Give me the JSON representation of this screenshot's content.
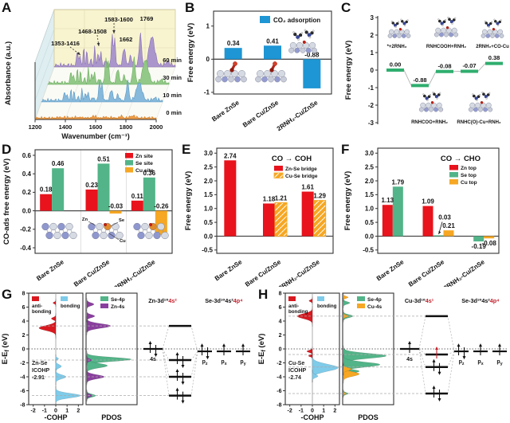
{
  "figure_panels": [
    {
      "letter": "A"
    },
    {
      "letter": "B"
    },
    {
      "letter": "C"
    },
    {
      "letter": "D"
    },
    {
      "letter": "E"
    },
    {
      "letter": "F"
    },
    {
      "letter": "G"
    },
    {
      "letter": "H"
    }
  ],
  "chart_data": [
    {
      "panel": "A",
      "type": "area",
      "xlabel": "Wavenumber (cm⁻¹)",
      "ylabel": "Absorbance (a.u.)",
      "xlim": [
        1200,
        2000
      ],
      "xticks": [
        1200,
        1400,
        1600,
        1800,
        2000
      ],
      "series": [
        {
          "name": "60 min",
          "color": "#a893cb",
          "edge": "#8a72b5",
          "amp": 1.0,
          "depth": 3
        },
        {
          "name": "30 min",
          "color": "#90c784",
          "edge": "#6faf63",
          "amp": 0.8,
          "depth": 2
        },
        {
          "name": "10 min",
          "color": "#82b7da",
          "edge": "#5f9cc6",
          "amp": 0.62,
          "depth": 1
        },
        {
          "name": "0 min",
          "color": "#f09a40",
          "edge": "#d97f22",
          "amp": 0.07,
          "depth": 0
        }
      ],
      "peaks": [
        [
          1353,
          0.5,
          7
        ],
        [
          1371,
          0.33,
          6
        ],
        [
          1395,
          0.55,
          6
        ],
        [
          1416,
          0.45,
          6
        ],
        [
          1442,
          0.22,
          6
        ],
        [
          1468,
          0.6,
          6
        ],
        [
          1490,
          0.42,
          6
        ],
        [
          1508,
          0.5,
          6
        ],
        [
          1540,
          0.15,
          10
        ],
        [
          1583,
          0.95,
          8
        ],
        [
          1600,
          0.8,
          8
        ],
        [
          1662,
          0.55,
          12
        ],
        [
          1705,
          0.28,
          12
        ],
        [
          1769,
          1.0,
          11
        ],
        [
          1845,
          0.9,
          26
        ],
        [
          1950,
          0.12,
          20
        ]
      ],
      "annotations": [
        "1353-1416",
        "1468-1508",
        "1583-1600",
        "1769",
        "1662"
      ]
    },
    {
      "panel": "B",
      "type": "bar",
      "ylabel": "Free energy (eV)",
      "ylim": [
        -1.05,
        1.45
      ],
      "yticks": [
        {
          "v": 1,
          "t": "1"
        },
        {
          "v": 0,
          "t": "0"
        },
        {
          "v": -1,
          "t": "-1"
        }
      ],
      "series": [
        {
          "name": "CO₂ adsorption",
          "color": "#1e95d4"
        }
      ],
      "categories": [
        "Bare ZnSe",
        "Bare Cu/ZnSe",
        "2RNH₂-Cu/ZnSe"
      ],
      "values": [
        [
          0.34
        ],
        [
          0.41
        ],
        [
          -0.88
        ]
      ],
      "value_labels": [
        [
          "0.34"
        ],
        [
          "0.41"
        ],
        [
          "-0.88"
        ]
      ],
      "neg_label": "above-zero",
      "insets": [
        "slab-co",
        "slab-co",
        "amine-surface"
      ]
    },
    {
      "panel": "C",
      "type": "step",
      "ylabel": "Free energy (eV)",
      "ylim": [
        -3,
        3
      ],
      "yticks": [
        {
          "v": 3,
          "t": "3"
        },
        {
          "v": 2,
          "t": "2"
        },
        {
          "v": 1,
          "t": "1"
        },
        {
          "v": 0,
          "t": "0"
        },
        {
          "v": -1,
          "t": "-1"
        },
        {
          "v": -2,
          "t": "-2"
        },
        {
          "v": -3,
          "t": "-3"
        }
      ],
      "levels": [
        0.0,
        -0.88,
        -0.08,
        -0.07,
        0.38
      ],
      "level_labels": [
        "0.00",
        "-0.88",
        "-0.08",
        "-0.07",
        "0.38"
      ],
      "state_labels_top": [
        "*+2RNH₂",
        "RNHCOOH+RNH₂",
        "2RNH₂+CO-Cu"
      ],
      "state_labels_bottom": [
        "RNHCOO+RNH₂",
        "RNHC(O)-Cu+RNH₂"
      ],
      "level_color": "#2fae6e",
      "insets_top": [
        "amine-surface",
        "amine-surface",
        "amine-surface"
      ],
      "insets_bottom": [
        "amine-surface",
        "amine-surface"
      ]
    },
    {
      "panel": "D",
      "type": "bar",
      "ylabel": "CO-ads free energy (eV)",
      "ylim": [
        -0.46,
        0.66
      ],
      "yticks": [
        {
          "v": 0.6,
          "t": "0.6"
        },
        {
          "v": 0.4,
          "t": "0.4"
        },
        {
          "v": 0.2,
          "t": "0.2"
        },
        {
          "v": 0.0,
          "t": "0.0"
        },
        {
          "v": -0.2,
          "t": "-0.2"
        },
        {
          "v": -0.4,
          "t": "-0.4"
        }
      ],
      "series": [
        {
          "name": "Zn site",
          "color": "#e8131c"
        },
        {
          "name": "Se site",
          "color": "#52b488"
        },
        {
          "name": "Cu site",
          "color": "#f6a723"
        }
      ],
      "categories": [
        "Bare ZnSe",
        "Bare Cu/ZnSe",
        "2RNH₂-Cu/ZnSe"
      ],
      "values": [
        [
          0.18,
          0.46,
          null
        ],
        [
          0.23,
          0.51,
          -0.03
        ],
        [
          0.11,
          0.36,
          -0.26
        ]
      ],
      "value_labels": [
        [
          "0.18",
          "0.46",
          null
        ],
        [
          "0.23",
          "0.51",
          "-0.03"
        ],
        [
          "0.11",
          "0.36",
          "-0.26"
        ]
      ],
      "neg_label": "above-zero",
      "insets": [
        "lattice",
        "lattice-cu",
        "lattice-cu"
      ],
      "inset_labels": [
        "Zn",
        "Se",
        "Cu"
      ]
    },
    {
      "panel": "E",
      "type": "bar",
      "title": "CO → COH",
      "ylabel": "Free energy (eV)",
      "ylim": [
        -0.62,
        3.18
      ],
      "yticks": [
        {
          "v": 3.0,
          "t": "3.0"
        },
        {
          "v": 2.5,
          "t": "2.5"
        },
        {
          "v": 2.0,
          "t": "2.0"
        },
        {
          "v": 1.5,
          "t": "1.5"
        },
        {
          "v": 1.0,
          "t": "1.0"
        },
        {
          "v": 0.5,
          "t": "0.5"
        },
        {
          "v": 0.0,
          "t": "0.0"
        },
        {
          "v": -0.5,
          "t": "-0.5"
        }
      ],
      "series": [
        {
          "name": "Zn-Se bridge",
          "color": "#e8131c"
        },
        {
          "name": "Cu-Se bridge",
          "color": "#f6a723",
          "hatch": true
        }
      ],
      "categories": [
        "Bare ZnSe",
        "Bare Cu/ZnSe",
        "2RNH₂-Cu/ZnSe"
      ],
      "values": [
        [
          2.74,
          null
        ],
        [
          1.18,
          1.21
        ],
        [
          1.61,
          1.29
        ]
      ],
      "value_labels": [
        [
          "2.74",
          null
        ],
        [
          "1.18",
          "1.21"
        ],
        [
          "1.61",
          "1.29"
        ]
      ]
    },
    {
      "panel": "F",
      "type": "bar",
      "title": "CO → CHO",
      "ylabel": "Free energy (eV)",
      "ylim": [
        -0.62,
        3.18
      ],
      "yticks": [
        {
          "v": 3.0,
          "t": "3.0"
        },
        {
          "v": 2.5,
          "t": "2.5"
        },
        {
          "v": 2.0,
          "t": "2.0"
        },
        {
          "v": 1.5,
          "t": "1.5"
        },
        {
          "v": 1.0,
          "t": "1.0"
        },
        {
          "v": 0.5,
          "t": "0.5"
        },
        {
          "v": 0.0,
          "t": "0.0"
        },
        {
          "v": -0.5,
          "t": "-0.5"
        }
      ],
      "series": [
        {
          "name": "Zn top",
          "color": "#e8131c"
        },
        {
          "name": "Se top",
          "color": "#52b488"
        },
        {
          "name": "Cu top",
          "color": "#f6a723"
        }
      ],
      "categories": [
        "Bare ZnSe",
        "Bare Cu/ZnSe",
        "2RNH₂-Cu/ZnSe"
      ],
      "values": [
        [
          1.13,
          1.79,
          null
        ],
        [
          1.09,
          0.03,
          0.21
        ],
        [
          null,
          -0.19,
          -0.08
        ]
      ],
      "value_labels": [
        [
          "1.13",
          "1.79",
          null
        ],
        [
          "1.09",
          null,
          "0.21"
        ],
        [
          null,
          "-0.19",
          "-0.08"
        ]
      ],
      "neg_label": "below-bar",
      "annotation_arrow": {
        "group": 1,
        "bar": 1,
        "label": "0.03"
      }
    },
    {
      "panel": "G",
      "type": "cohp",
      "ylabel_parts": [
        "E-E",
        "f",
        " (eV)"
      ],
      "ylim": [
        -8,
        8
      ],
      "yticks": [
        8,
        6,
        4,
        2,
        0,
        -2,
        -4,
        -6,
        -8
      ],
      "xlabel": "-COHP",
      "xticks": [
        -2,
        -1,
        0,
        1,
        2
      ],
      "cohp_legend": [
        {
          "label_lines": [
            "anti-",
            "bonding"
          ],
          "color": "#d81a20"
        },
        {
          "label_lines": [
            "bonding"
          ],
          "color": "#7ecbea"
        }
      ],
      "icohp_lines": [
        "Zn-Se",
        "ICOHP",
        "-2.91"
      ],
      "cohp_peaks": [
        {
          "c": 3.0,
          "h": 1.5,
          "w": 0.5,
          "side": -1,
          "color": "#d81a20"
        },
        {
          "c": 4.35,
          "h": 0.4,
          "w": 0.25,
          "side": -1,
          "color": "#d81a20"
        },
        {
          "c": 6.6,
          "h": 0.25,
          "w": 0.18,
          "side": -1,
          "color": "#d81a20"
        },
        {
          "c": -1.4,
          "h": 0.25,
          "w": 0.2,
          "side": 1,
          "color": "#7ecbea"
        },
        {
          "c": -2.5,
          "h": 0.5,
          "w": 0.35,
          "side": 1,
          "color": "#7ecbea"
        },
        {
          "c": -4.0,
          "h": 0.9,
          "w": 0.4,
          "side": 1,
          "color": "#7ecbea"
        },
        {
          "c": -6.7,
          "h": 2.2,
          "w": 0.45,
          "side": 1,
          "color": "#7ecbea"
        }
      ],
      "pdos_label": "PDOS",
      "pdos_legend": [
        {
          "label": "Se-4p",
          "color": "#52b488"
        },
        {
          "label": "Zn-4s",
          "color": "#8a3f9e"
        }
      ],
      "pdos_peaks": [
        {
          "c": -1.5,
          "h": 2.8,
          "w": 0.4,
          "color": "#52b488"
        },
        {
          "c": -2.4,
          "h": 1.3,
          "w": 0.45,
          "color": "#52b488"
        },
        {
          "c": -4.05,
          "h": 0.5,
          "w": 0.3,
          "color": "#52b488"
        },
        {
          "c": -6.7,
          "h": 0.55,
          "w": 0.3,
          "color": "#52b488"
        },
        {
          "c": 3.3,
          "h": 0.5,
          "w": 0.3,
          "color": "#52b488"
        },
        {
          "c": 3.3,
          "h": 1.5,
          "w": 0.45,
          "color": "#8a3f9e"
        },
        {
          "c": 4.7,
          "h": 0.5,
          "w": 0.3,
          "color": "#8a3f9e"
        },
        {
          "c": 6.4,
          "h": 0.45,
          "w": 0.3,
          "color": "#8a3f9e"
        },
        {
          "c": -4.0,
          "h": 1.1,
          "w": 0.4,
          "color": "#8a3f9e"
        },
        {
          "c": -6.7,
          "h": 0.35,
          "w": 0.25,
          "color": "#8a3f9e"
        },
        {
          "c": -1.6,
          "h": 0.3,
          "w": 0.25,
          "color": "#8a3f9e"
        }
      ],
      "ref_lines": [
        3.3,
        -1.6,
        -4.0,
        -6.7
      ],
      "mo": {
        "left_title": {
          "black": "Zn-3d¹⁰",
          "red": "4s²"
        },
        "right_title": {
          "black": "Se-3d¹⁰4s²",
          "red": "4p⁴"
        },
        "left_level": {
          "e": 0,
          "spin": "paired",
          "label": "4s"
        },
        "center_levels": [
          {
            "e": 3.3,
            "spin": "none"
          },
          {
            "e": -1.6,
            "spin": "paired"
          },
          {
            "e": -4.0,
            "spin": "paired"
          },
          {
            "e": -6.7,
            "spin": "paired"
          }
        ],
        "p_levels": [
          {
            "e": -0.35,
            "spin": "paired",
            "sub": "z"
          },
          {
            "e": -0.35,
            "spin": "up",
            "sub": "x"
          },
          {
            "e": -0.35,
            "spin": "up",
            "sub": "y"
          }
        ]
      }
    },
    {
      "panel": "H",
      "type": "cohp",
      "ylabel_parts": [
        "E-E",
        "f",
        " (eV)"
      ],
      "ylim": [
        -8,
        8
      ],
      "yticks": [
        8,
        6,
        4,
        2,
        0,
        -2,
        -4,
        -6,
        -8
      ],
      "xlabel": "-COHP",
      "xticks": [
        -2,
        -1,
        0,
        1,
        2
      ],
      "cohp_legend": [
        {
          "label_lines": [
            "anti-",
            "bonding"
          ],
          "color": "#d81a20"
        },
        {
          "label_lines": [
            "bonding"
          ],
          "color": "#7ecbea"
        }
      ],
      "icohp_lines": [
        "Cu-Se",
        "ICOHP",
        "-2.74"
      ],
      "cohp_peaks": [
        {
          "c": 4.7,
          "h": 1.35,
          "w": 0.5,
          "side": -1,
          "color": "#d81a20"
        },
        {
          "c": 6.9,
          "h": 0.3,
          "w": 0.2,
          "side": -1,
          "color": "#d81a20"
        },
        {
          "c": -0.35,
          "h": 0.5,
          "w": 0.22,
          "side": -1,
          "color": "#d81a20"
        },
        {
          "c": -1.0,
          "h": 0.35,
          "w": 0.18,
          "side": -1,
          "color": "#d81a20"
        },
        {
          "c": -2.7,
          "h": 2.3,
          "w": 0.7,
          "side": 1,
          "color": "#7ecbea"
        },
        {
          "c": -3.9,
          "h": 0.5,
          "w": 0.3,
          "side": 1,
          "color": "#7ecbea"
        }
      ],
      "pdos_label": "PDOS",
      "pdos_legend": [
        {
          "label": "Se-4p",
          "color": "#52b488"
        },
        {
          "label": "Cu-4s",
          "color": "#f6a723"
        }
      ],
      "pdos_peaks": [
        {
          "c": -1.0,
          "h": 2.7,
          "w": 0.5,
          "color": "#52b488"
        },
        {
          "c": -2.25,
          "h": 2.3,
          "w": 0.5,
          "color": "#52b488"
        },
        {
          "c": -3.2,
          "h": 1.0,
          "w": 0.35,
          "color": "#52b488"
        },
        {
          "c": 4.7,
          "h": 0.6,
          "w": 0.3,
          "color": "#52b488"
        },
        {
          "c": 6.6,
          "h": 0.4,
          "w": 0.25,
          "color": "#52b488"
        },
        {
          "c": -6.4,
          "h": 0.3,
          "w": 0.2,
          "color": "#52b488"
        },
        {
          "c": -3.6,
          "h": 1.0,
          "w": 0.45,
          "color": "#f6a723"
        },
        {
          "c": -2.9,
          "h": 0.5,
          "w": 0.3,
          "color": "#f6a723"
        },
        {
          "c": 4.7,
          "h": 0.35,
          "w": 0.2,
          "color": "#f6a723"
        },
        {
          "c": 7.4,
          "h": 0.3,
          "w": 0.2,
          "color": "#f6a723"
        },
        {
          "c": -6.4,
          "h": 0.2,
          "w": 0.15,
          "color": "#f6a723"
        }
      ],
      "ref_lines": [
        4.7,
        -0.8,
        -2.6,
        -6.4
      ],
      "mo": {
        "left_title": {
          "black": "Cu-3d¹⁰",
          "red": "4s¹"
        },
        "right_title": {
          "black": "Se-3d¹⁰4s²",
          "red": "4p⁴"
        },
        "left_level": {
          "e": 0,
          "spin": "up",
          "label": "4s"
        },
        "center_levels": [
          {
            "e": 4.7,
            "spin": "none"
          },
          {
            "e": -0.8,
            "spin": "up-red"
          },
          {
            "e": -2.6,
            "spin": "paired"
          },
          {
            "e": -6.4,
            "spin": "paired"
          }
        ],
        "p_levels": [
          {
            "e": -0.35,
            "spin": "paired",
            "sub": "z"
          },
          {
            "e": -0.35,
            "spin": "up",
            "sub": "x"
          },
          {
            "e": -0.35,
            "spin": "up",
            "sub": "y"
          }
        ]
      }
    }
  ]
}
